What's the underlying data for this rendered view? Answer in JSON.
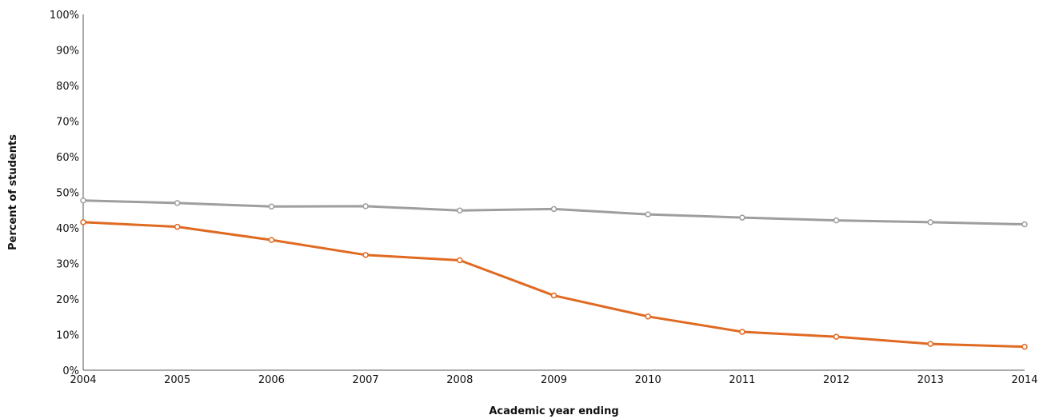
{
  "chart_data": {
    "type": "line",
    "title": "",
    "xlabel": "Academic year ending",
    "ylabel": "Percent of students",
    "x": [
      "2004",
      "2005",
      "2006",
      "2007",
      "2008",
      "2009",
      "2010",
      "2011",
      "2012",
      "2013",
      "2014"
    ],
    "yticks": [
      "0%",
      "10%",
      "20%",
      "30%",
      "40%",
      "50%",
      "60%",
      "70%",
      "80%",
      "90%",
      "100%"
    ],
    "ylim": [
      0,
      100
    ],
    "grid": false,
    "legend": "none",
    "series": [
      {
        "color": "#9e9e9e",
        "values": [
          47.7,
          47.0,
          46.0,
          46.1,
          44.9,
          45.3,
          43.8,
          42.9,
          42.1,
          41.6,
          41.0
        ]
      },
      {
        "color": "#e06a22",
        "values": [
          41.6,
          40.3,
          36.6,
          32.4,
          30.9,
          21.0,
          15.1,
          10.8,
          9.4,
          7.4,
          6.6
        ]
      }
    ]
  }
}
